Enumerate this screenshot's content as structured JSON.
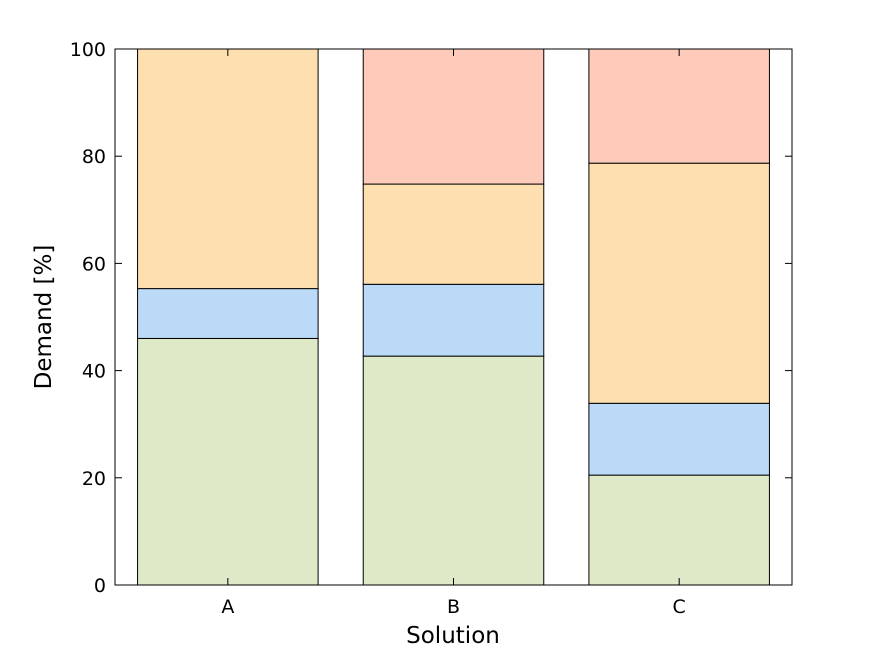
{
  "chart_data": {
    "type": "bar",
    "stacked": true,
    "xlabel": "Solution",
    "ylabel": "Demand [%]",
    "categories": [
      "A",
      "B",
      "C"
    ],
    "ylim": [
      0,
      100
    ],
    "yticks": [
      0,
      20,
      40,
      60,
      80,
      100
    ],
    "grid": false,
    "legend": "none",
    "series": [
      {
        "color": "#dde9c7",
        "values": [
          46.0,
          42.7,
          20.5
        ]
      },
      {
        "color": "#bbdaf8",
        "values": [
          9.3,
          13.4,
          13.4
        ]
      },
      {
        "color": "#fddfb0",
        "values": [
          44.7,
          18.7,
          44.8
        ]
      },
      {
        "color": "#fecbbb",
        "values": [
          0.0,
          25.2,
          21.3
        ]
      }
    ]
  }
}
